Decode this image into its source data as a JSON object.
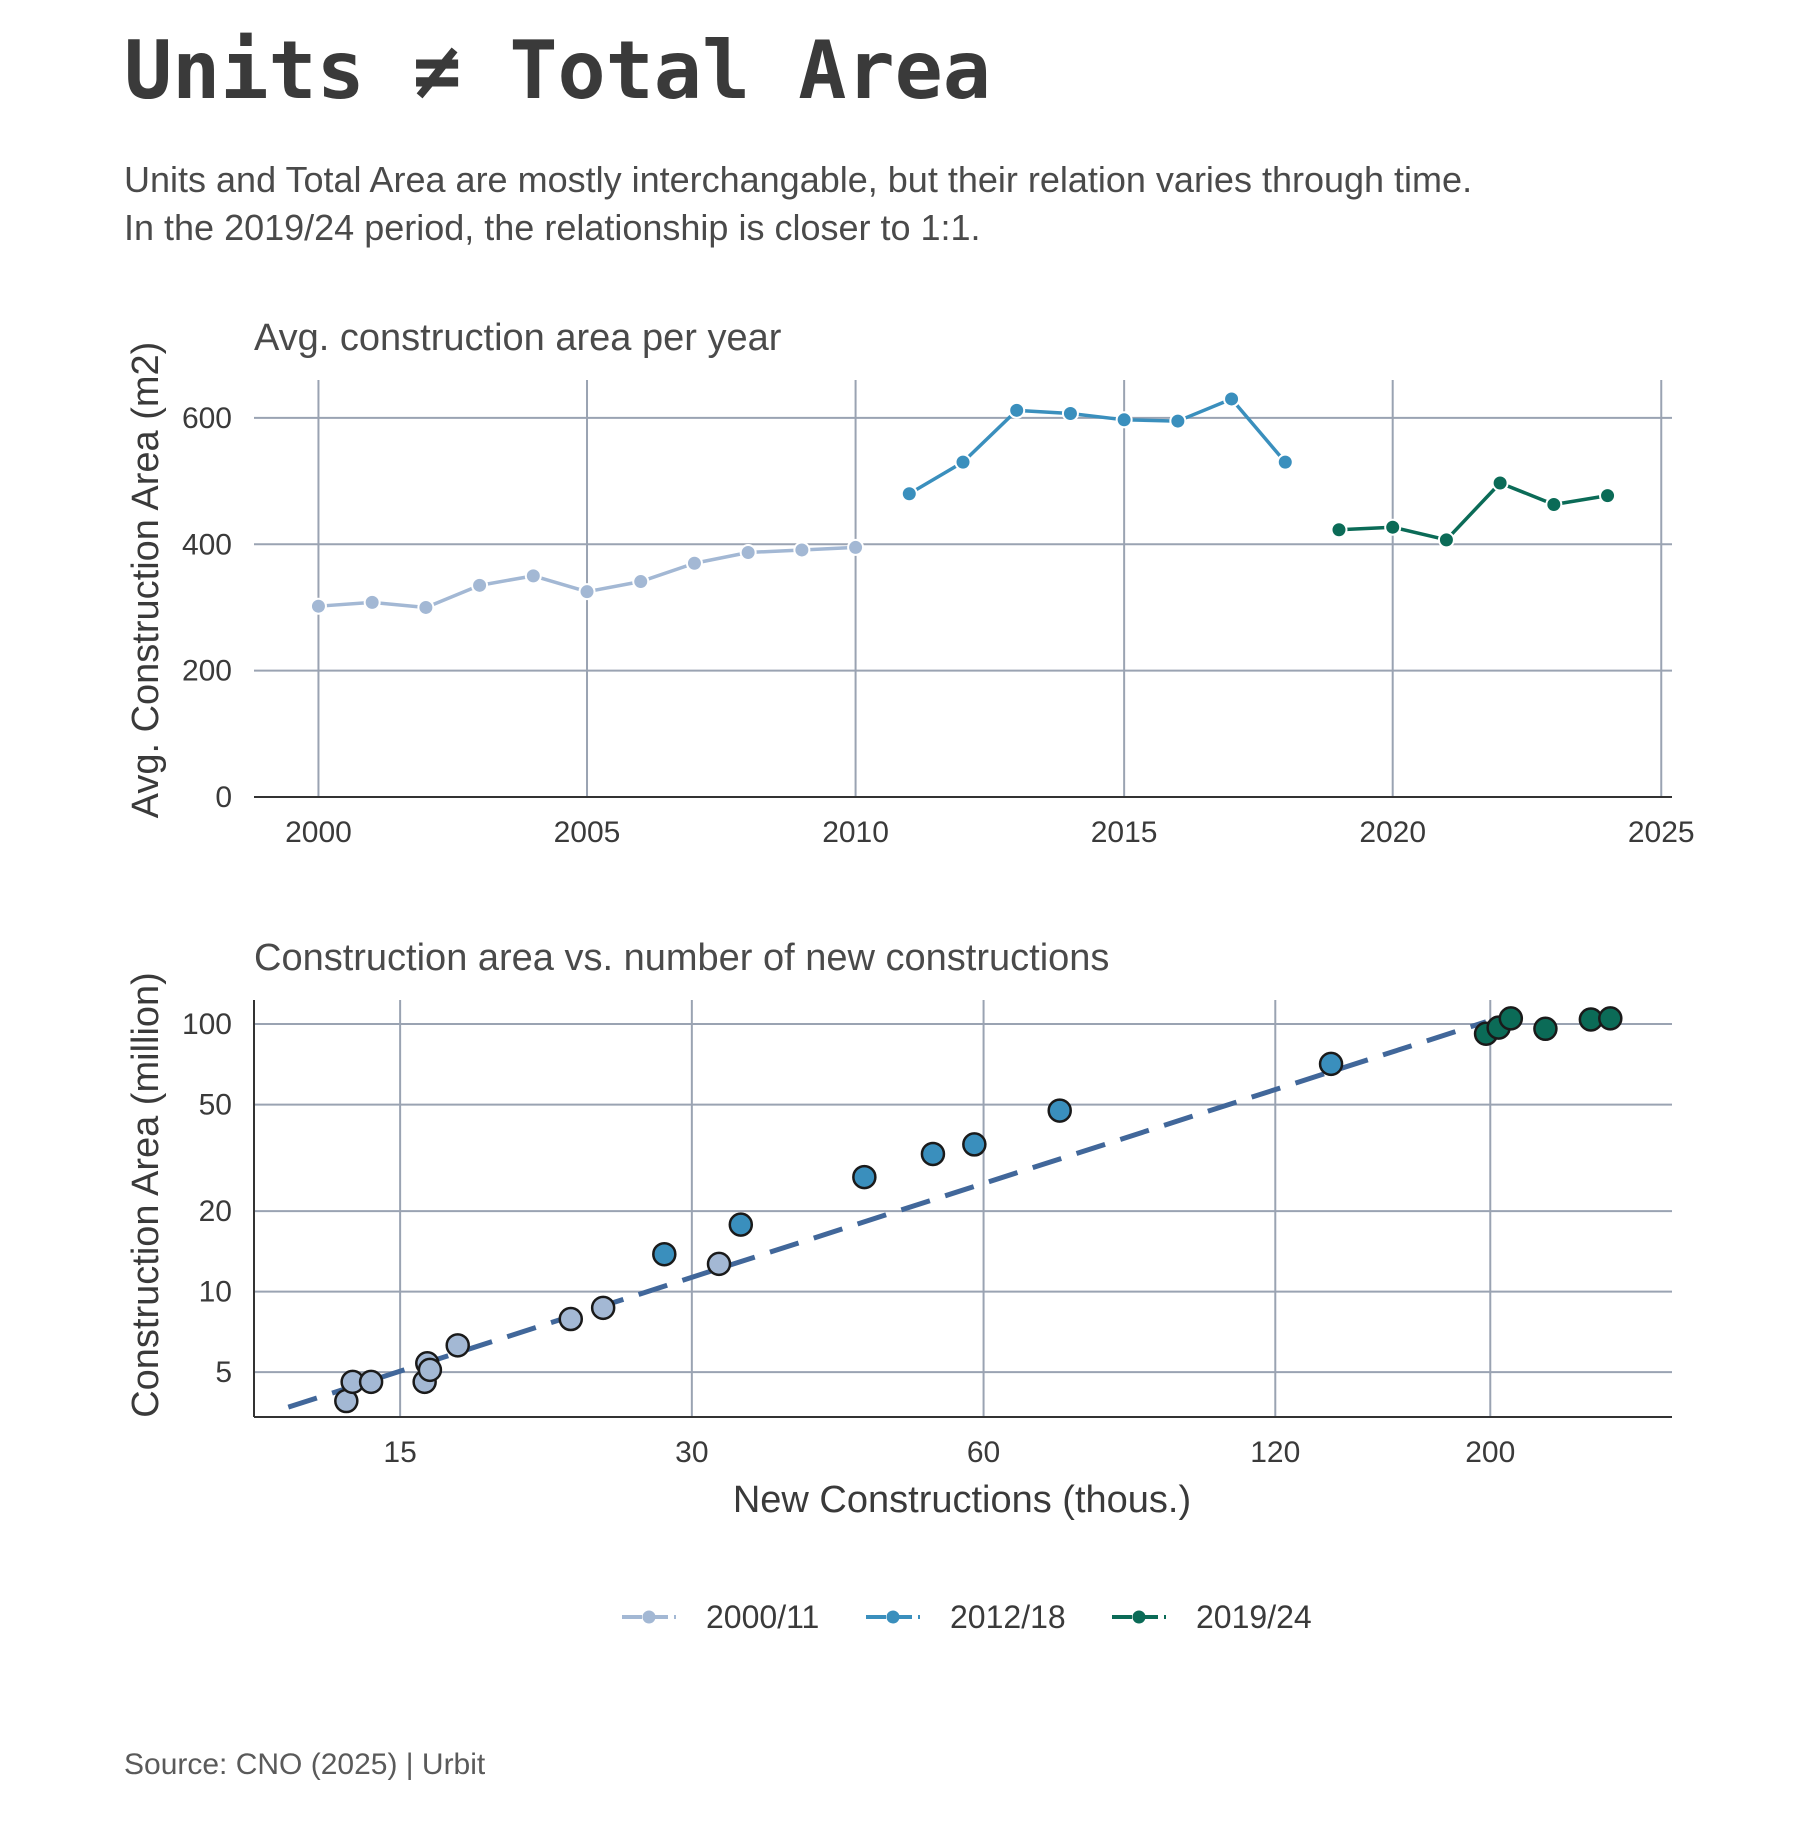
{
  "title": "Units ≠ Total Area",
  "subtitle_lines": [
    "Units and Total Area are mostly interchangable, but their relation varies through time.",
    "In the 2019/24 period, the relationship is closer to 1:1."
  ],
  "caption": "Source: CNO (2025) | Urbit",
  "colors": {
    "2000/11": "#a3b8d4",
    "2012/18": "#3a8fbd",
    "2019/24": "#0b6b57",
    "trend": "#41679a"
  },
  "legend": [
    {
      "label": "2000/11",
      "color": "#a3b8d4"
    },
    {
      "label": "2012/18",
      "color": "#3a8fbd"
    },
    {
      "label": "2019/24",
      "color": "#0b6b57"
    }
  ],
  "chart_data": [
    {
      "type": "line",
      "title": "Avg. construction area per year",
      "xlabel": "",
      "ylabel": "Avg. Construction Area (m2)",
      "xlim": [
        1998.8,
        2025.2
      ],
      "ylim": [
        0,
        660
      ],
      "xticks": [
        2000,
        2005,
        2010,
        2015,
        2020,
        2025
      ],
      "yticks": [
        0,
        200,
        400,
        600
      ],
      "grid": true,
      "series": [
        {
          "name": "2000/11",
          "color": "#a3b8d4",
          "x": [
            2000,
            2001,
            2002,
            2003,
            2004,
            2005,
            2006,
            2007,
            2008,
            2009,
            2010
          ],
          "y": [
            302,
            308,
            300,
            335,
            350,
            325,
            341,
            370,
            387,
            391,
            395
          ]
        },
        {
          "name": "2012/18",
          "color": "#3a8fbd",
          "x": [
            2011,
            2012,
            2013,
            2014,
            2015,
            2016,
            2017,
            2018
          ],
          "y": [
            480,
            530,
            612,
            607,
            597,
            595,
            630,
            530
          ]
        },
        {
          "name": "2019/24",
          "color": "#0b6b57",
          "x": [
            2019,
            2020,
            2021,
            2022,
            2023,
            2024
          ],
          "y": [
            423,
            427,
            407,
            497,
            463,
            477
          ]
        }
      ]
    },
    {
      "type": "scatter",
      "title": "Construction area vs. number of new constructions",
      "xlabel": "New Constructions (thous.)",
      "ylabel": "Construction Area (million)",
      "xscale": "log",
      "yscale": "log",
      "xlim": [
        10.6,
        308
      ],
      "ylim": [
        3.4,
        123
      ],
      "xticks": [
        15,
        30,
        60,
        120,
        200
      ],
      "yticks": [
        5,
        10,
        20,
        50,
        100
      ],
      "grid": true,
      "trendline": {
        "x": [
          11.5,
          198
        ],
        "y": [
          3.7,
          102
        ],
        "style": "dashed",
        "color": "#41679a"
      },
      "series": [
        {
          "name": "2000/11",
          "color": "#a3b8d4",
          "x": [
            13.2,
            13.4,
            14.0,
            15.9,
            16.0,
            16.1,
            17.2,
            22.5,
            24.3,
            32.0
          ],
          "y": [
            3.9,
            4.6,
            4.6,
            4.6,
            5.4,
            5.1,
            6.3,
            7.9,
            8.7,
            12.7
          ]
        },
        {
          "name": "2012/18",
          "color": "#3a8fbd",
          "x": [
            28.1,
            33.7,
            45.2,
            53.2,
            58.7,
            71.9,
            137.0
          ],
          "y": [
            13.8,
            17.8,
            26.8,
            32.7,
            35.5,
            47.5,
            71.0
          ]
        },
        {
          "name": "2019/24",
          "color": "#0b6b57",
          "x": [
            198.0,
            204.0,
            210.0,
            228.0,
            254.0,
            266.0
          ],
          "y": [
            92.0,
            97.0,
            105.0,
            96.0,
            104.0,
            105.0
          ]
        }
      ]
    }
  ]
}
